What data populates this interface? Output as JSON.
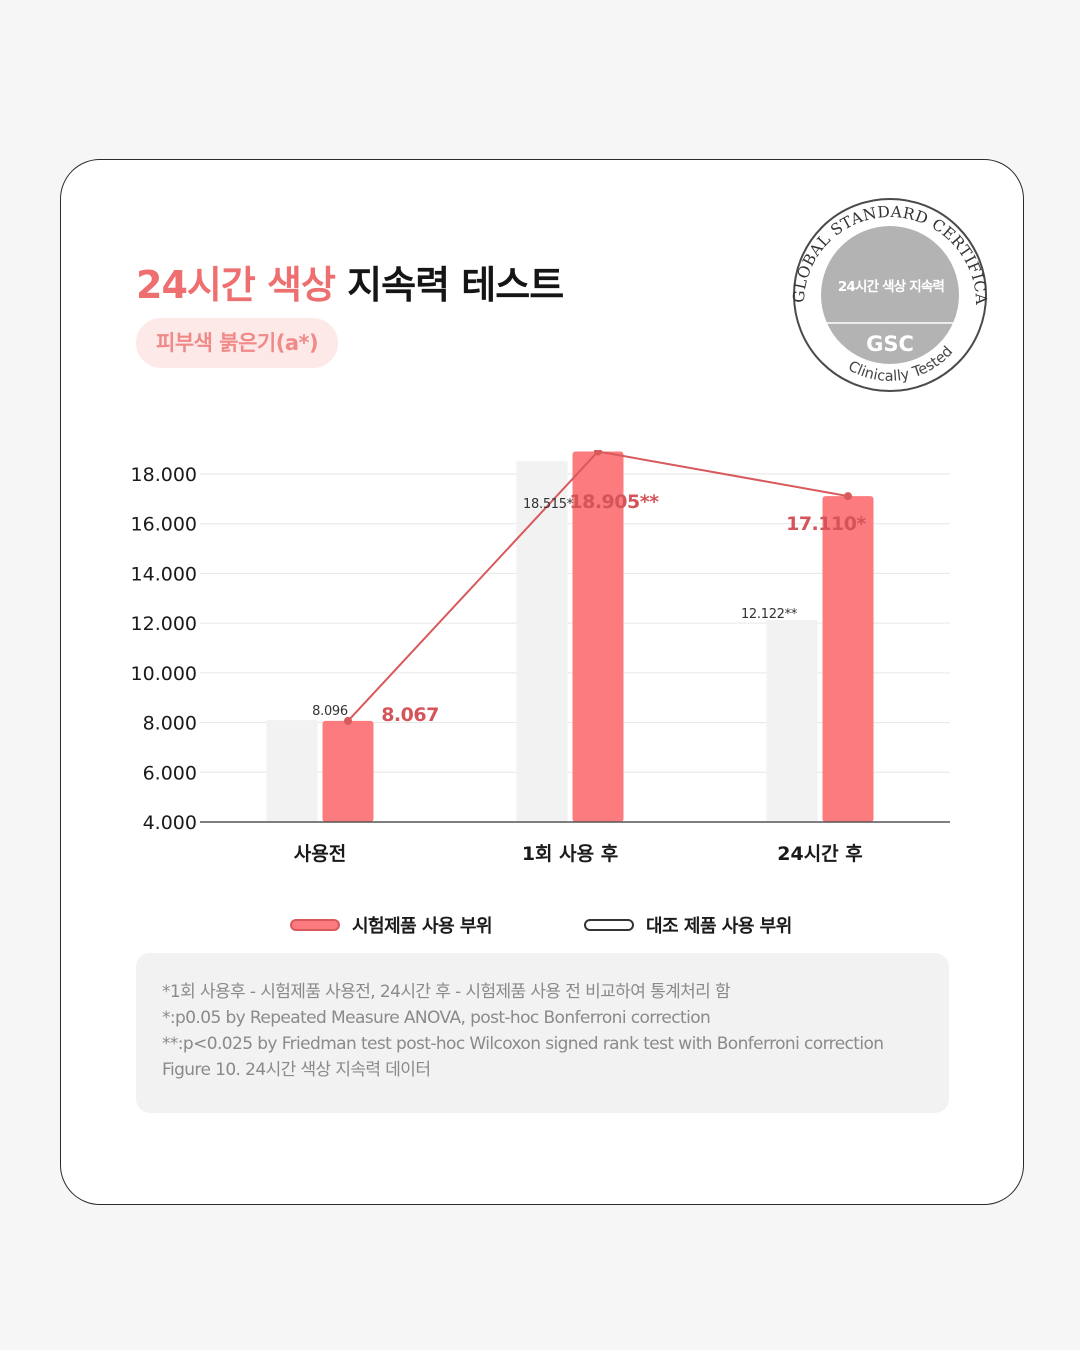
{
  "title": {
    "highlight": "24시간 색상",
    "rest": " 지속력 테스트"
  },
  "subtitle_pill": "피부색 붉은기(a*)",
  "badge": {
    "arc_top": "GLOBAL STANDARD CERTIFICATION",
    "center_text": "24시간 색상 지속력",
    "code": "GSC",
    "arc_bottom": "Clinically Tested"
  },
  "chart_data": {
    "type": "bar",
    "categories": [
      "사용전",
      "1회 사용 후",
      "24시간 후"
    ],
    "series": [
      {
        "name": "대조 제품 사용 부위",
        "values": [
          8.096,
          18.515,
          12.122
        ],
        "labels": [
          "8.096",
          "18.515*",
          "12.122**"
        ],
        "color": "#f2f2f2"
      },
      {
        "name": "시험제품 사용 부위",
        "values": [
          8.067,
          18.905,
          17.11
        ],
        "labels": [
          "8.067",
          "18.905**",
          "17.110*"
        ],
        "color": "#fc7b7e"
      }
    ],
    "line_series": "시험제품 사용 부위",
    "line_color": "#d85a5c",
    "ylim": [
      4,
      18
    ],
    "yticks": [
      "4.000",
      "6.000",
      "8.000",
      "10.000",
      "12.000",
      "14.000",
      "16.000",
      "18.000"
    ],
    "grid": true,
    "legend_position": "bottom-center",
    "xlabel": "",
    "ylabel": ""
  },
  "legend": [
    {
      "label": "시험제품 사용 부위",
      "fill": "#fc7b7e",
      "border": "#d85a5c"
    },
    {
      "label": "대조 제품 사용 부위",
      "fill": "#ffffff",
      "border": "#333333"
    }
  ],
  "footnotes": [
    "*1회 사용후 - 시험제품 사용전, 24시간 후 - 시험제품 사용 전 비교하여 통계처리 함",
    "*:p0.05 by Repeated Measure ANOVA, post-hoc Bonferroni correction",
    "**:p<0.025 by Friedman test post-hoc Wilcoxon signed rank test with Bonferroni correction",
    "Figure 10. 24시간 색상 지속력 데이터"
  ]
}
